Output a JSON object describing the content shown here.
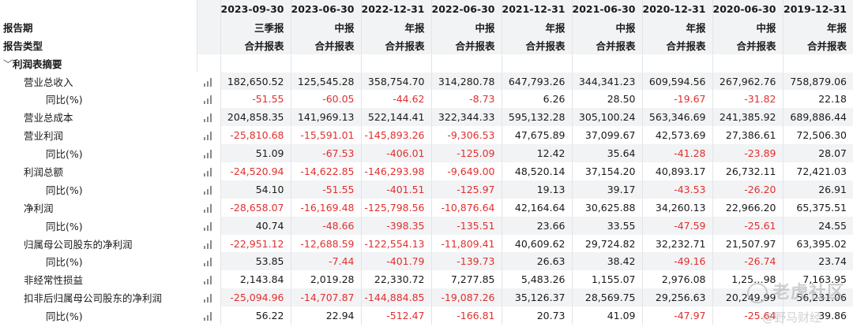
{
  "header": {
    "dates": [
      "2023-09-30",
      "2023-06-30",
      "2022-12-31",
      "2022-06-30",
      "2021-12-31",
      "2021-06-30",
      "2020-12-31",
      "2020-06-30",
      "2019-12-31"
    ],
    "period_label": "报告期",
    "periods": [
      "三季报",
      "中报",
      "年报",
      "中报",
      "年报",
      "中报",
      "年报",
      "中报",
      "年报"
    ],
    "type_label": "报告类型",
    "types": [
      "合并报表",
      "合并报表",
      "合并报表",
      "合并报表",
      "合并报表",
      "合并报表",
      "合并报表",
      "合并报表",
      "合并报表"
    ]
  },
  "section": {
    "title": "利润表摘要"
  },
  "rows": [
    {
      "label": "营业总收入",
      "values": [
        "182,650.52",
        "125,545.28",
        "358,754.70",
        "314,280.78",
        "647,793.26",
        "344,341.23",
        "609,594.56",
        "267,962.76",
        "758,879.06"
      ]
    },
    {
      "label": "同比(%)",
      "values": [
        "-51.55",
        "-60.05",
        "-44.62",
        "-8.73",
        "6.26",
        "28.50",
        "-19.67",
        "-31.82",
        "22.18"
      ]
    },
    {
      "label": "营业总成本",
      "values": [
        "204,858.35",
        "141,969.13",
        "522,144.41",
        "322,344.33",
        "595,132.28",
        "305,100.24",
        "563,346.69",
        "241,385.92",
        "689,886.44"
      ]
    },
    {
      "label": "营业利润",
      "values": [
        "-25,810.68",
        "-15,591.01",
        "-145,893.26",
        "-9,306.53",
        "47,675.89",
        "37,099.67",
        "42,573.69",
        "27,386.61",
        "72,506.30"
      ]
    },
    {
      "label": "同比(%)",
      "values": [
        "51.09",
        "-67.53",
        "-406.01",
        "-125.09",
        "12.42",
        "35.64",
        "-41.28",
        "-23.89",
        "28.07"
      ]
    },
    {
      "label": "利润总额",
      "values": [
        "-24,520.94",
        "-14,622.85",
        "-146,293.98",
        "-9,649.00",
        "48,520.14",
        "37,154.20",
        "40,893.17",
        "26,732.11",
        "72,421.03"
      ]
    },
    {
      "label": "同比(%)",
      "values": [
        "54.10",
        "-51.55",
        "-401.51",
        "-125.97",
        "19.13",
        "39.17",
        "-43.53",
        "-26.20",
        "26.91"
      ]
    },
    {
      "label": "净利润",
      "values": [
        "-28,658.07",
        "-16,169.48",
        "-125,798.56",
        "-10,876.64",
        "42,164.64",
        "30,625.88",
        "34,260.13",
        "22,966.20",
        "65,375.51"
      ]
    },
    {
      "label": "同比(%)",
      "values": [
        "40.74",
        "-48.66",
        "-398.35",
        "-135.51",
        "23.66",
        "33.55",
        "-47.59",
        "-25.61",
        "24.55"
      ]
    },
    {
      "label": "归属母公司股东的净利润",
      "values": [
        "-22,951.12",
        "-12,688.59",
        "-122,554.13",
        "-11,809.41",
        "40,609.62",
        "29,724.82",
        "32,232.71",
        "21,507.97",
        "63,395.02"
      ]
    },
    {
      "label": "同比(%)",
      "values": [
        "53.85",
        "-7.44",
        "-401.79",
        "-139.73",
        "26.63",
        "38.42",
        "-49.16",
        "-26.74",
        "23.74"
      ]
    },
    {
      "label": "非经常性损益",
      "values": [
        "2,143.84",
        "2,019.28",
        "22,330.72",
        "7,277.85",
        "5,483.26",
        "1,155.07",
        "2,976.08",
        "1,25…98",
        "7,163.95"
      ]
    },
    {
      "label": "扣非后归属母公司股东的净利润",
      "values": [
        "-25,094.96",
        "-14,707.87",
        "-144,884.85",
        "-19,087.26",
        "35,126.37",
        "28,569.75",
        "29,256.63",
        "20,249.99",
        "56,231.06"
      ]
    },
    {
      "label": "同比(%)",
      "values": [
        "56.22",
        "22.94",
        "-512.47",
        "-166.81",
        "20.73",
        "41.09",
        "-47.97",
        "-25.64",
        "39.86"
      ]
    }
  ],
  "watermark": {
    "line1": "老虎社区",
    "line2": "@野马财经"
  },
  "colors": {
    "negative": "#e0302d",
    "header_bg": "#f2f3f5",
    "zebra": "#f2f3f5"
  }
}
